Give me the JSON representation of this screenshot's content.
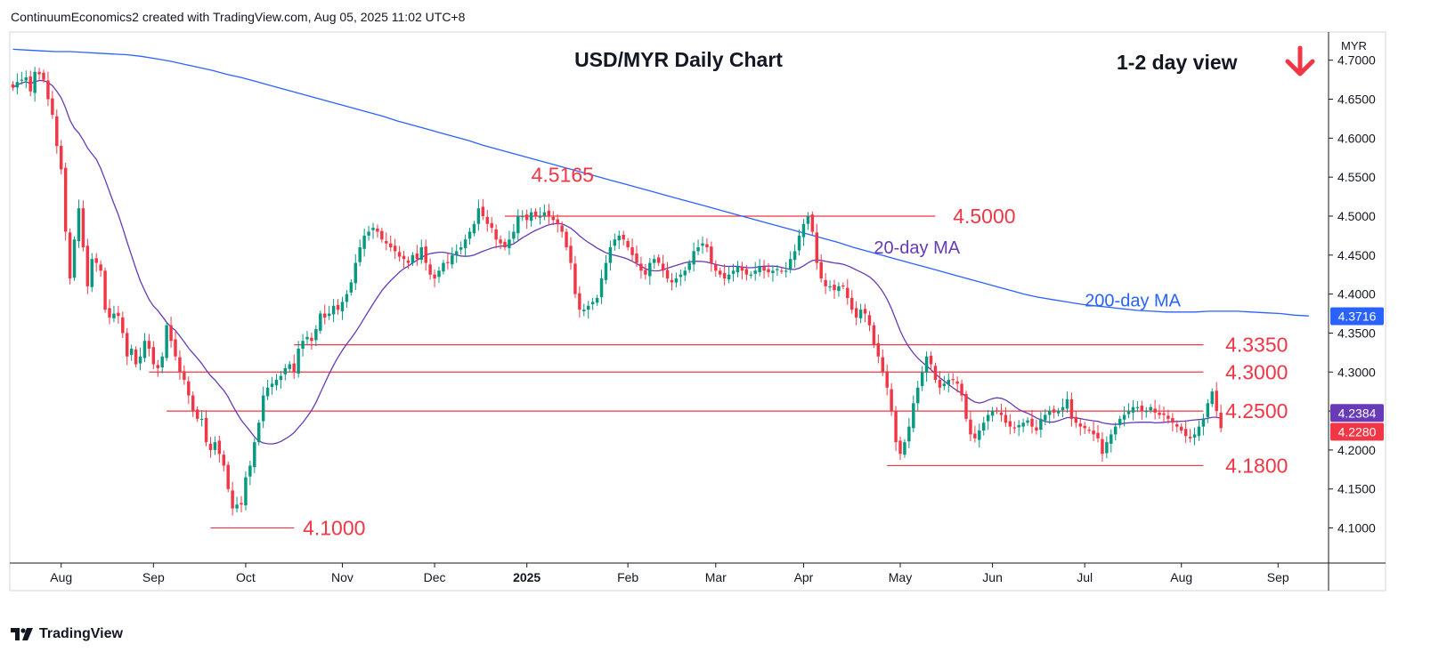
{
  "header": {
    "attribution": "ContinuumEconomics2 created with TradingView.com, Aug 05, 2025 11:02 UTC+8"
  },
  "footer": {
    "brand": "TradingView",
    "logo_icon": "tradingview-logo-icon"
  },
  "colors": {
    "up": "#089981",
    "down": "#f23645",
    "ma200": "#2962ff",
    "ma20": "#673ab7",
    "level": "#f23645",
    "axis": "#131722"
  },
  "chart_data": {
    "type": "line",
    "title": "USD/MYR Daily Chart",
    "view_label": "1-2 day view",
    "view_icon": "down-arrow-icon",
    "currency_label": "MYR",
    "y_axis": {
      "range": [
        4.055,
        4.735
      ],
      "ticks": [
        "4.1000",
        "4.1500",
        "4.2000",
        "4.2500",
        "4.3000",
        "4.3500",
        "4.4000",
        "4.4500",
        "4.5000",
        "4.5500",
        "4.6000",
        "4.6500",
        "4.7000"
      ]
    },
    "x_axis": {
      "ticks": [
        {
          "label": "Aug",
          "bar": 11,
          "bold": false
        },
        {
          "label": "Sep",
          "bar": 32,
          "bold": false
        },
        {
          "label": "Oct",
          "bar": 53,
          "bold": false
        },
        {
          "label": "Nov",
          "bar": 75,
          "bold": false
        },
        {
          "label": "Dec",
          "bar": 96,
          "bold": false
        },
        {
          "label": "2025",
          "bar": 117,
          "bold": true
        },
        {
          "label": "Feb",
          "bar": 140,
          "bold": false
        },
        {
          "label": "Mar",
          "bar": 160,
          "bold": false
        },
        {
          "label": "Apr",
          "bar": 180,
          "bold": false
        },
        {
          "label": "May",
          "bar": 202,
          "bold": false
        },
        {
          "label": "Jun",
          "bar": 223,
          "bold": false
        },
        {
          "label": "Jul",
          "bar": 244,
          "bold": false
        },
        {
          "label": "Aug",
          "bar": 266,
          "bold": false
        },
        {
          "label": "Sep",
          "bar": 288,
          "bold": false
        }
      ],
      "total_bars": 300
    },
    "last_price": "4.2280",
    "ma200_value": "4.3716",
    "ma20_value": "4.2384",
    "levels": [
      {
        "label": "4.5165",
        "price": 4.5165,
        "line_from": 0,
        "line_to": 0,
        "label_bar": 118,
        "label_above": true
      },
      {
        "label": "4.5000",
        "price": 4.5,
        "line_from": 112,
        "line_to": 210,
        "label_bar": 214
      },
      {
        "label": "4.3350",
        "price": 4.335,
        "line_from": 64,
        "line_to": 271,
        "label_bar": 276
      },
      {
        "label": "4.3000",
        "price": 4.3,
        "line_from": 31,
        "line_to": 271,
        "label_bar": 276
      },
      {
        "label": "4.2500",
        "price": 4.25,
        "line_from": 35,
        "line_to": 271,
        "label_bar": 276
      },
      {
        "label": "4.1800",
        "price": 4.18,
        "line_from": 199,
        "line_to": 271,
        "label_bar": 276
      },
      {
        "label": "4.1000",
        "price": 4.1,
        "line_from": 45,
        "line_to": 64,
        "label_bar": 66
      }
    ],
    "annotations": [
      {
        "text": "20-day MA",
        "bar": 196,
        "price": 4.452
      },
      {
        "text": "200-day MA",
        "bar": 244,
        "price": 4.384
      }
    ],
    "closes": [
      4.665,
      4.672,
      4.675,
      4.678,
      4.66,
      4.685,
      4.682,
      4.675,
      4.65,
      4.63,
      4.59,
      4.56,
      4.48,
      4.42,
      4.47,
      4.51,
      4.46,
      4.41,
      4.445,
      4.44,
      4.43,
      4.38,
      4.37,
      4.375,
      4.372,
      4.35,
      4.32,
      4.33,
      4.31,
      4.32,
      4.34,
      4.33,
      4.31,
      4.305,
      4.32,
      4.36,
      4.34,
      4.32,
      4.3,
      4.29,
      4.27,
      4.25,
      4.24,
      4.24,
      4.21,
      4.2,
      4.21,
      4.195,
      4.18,
      4.15,
      4.125,
      4.13,
      4.13,
      4.165,
      4.18,
      4.21,
      4.235,
      4.27,
      4.28,
      4.285,
      4.29,
      4.295,
      4.305,
      4.31,
      4.3,
      4.33,
      4.34,
      4.345,
      4.34,
      4.355,
      4.375,
      4.37,
      4.375,
      4.385,
      4.38,
      4.39,
      4.4,
      4.415,
      4.44,
      4.46,
      4.475,
      4.48,
      4.485,
      4.48,
      4.47,
      4.465,
      4.46,
      4.455,
      4.448,
      4.445,
      4.44,
      4.45,
      4.445,
      4.46,
      4.44,
      4.425,
      4.42,
      4.43,
      4.44,
      4.44,
      4.45,
      4.455,
      4.46,
      4.47,
      4.48,
      4.49,
      4.51,
      4.5,
      4.49,
      4.485,
      4.47,
      4.465,
      4.46,
      4.47,
      4.48,
      4.5,
      4.5,
      4.495,
      4.505,
      4.5,
      4.5,
      4.505,
      4.5,
      4.495,
      4.49,
      4.48,
      4.46,
      4.44,
      4.4,
      4.38,
      4.38,
      4.385,
      4.39,
      4.395,
      4.42,
      4.44,
      4.46,
      4.47,
      4.475,
      4.47,
      4.46,
      4.45,
      4.44,
      4.43,
      4.425,
      4.44,
      4.445,
      4.44,
      4.43,
      4.42,
      4.415,
      4.42,
      4.425,
      4.43,
      4.44,
      4.455,
      4.46,
      4.465,
      4.46,
      4.44,
      4.43,
      4.425,
      4.42,
      4.425,
      4.43,
      4.435,
      4.43,
      4.425,
      4.425,
      4.43,
      4.435,
      4.43,
      4.428,
      4.43,
      4.432,
      4.43,
      4.43,
      4.445,
      4.455,
      4.475,
      4.49,
      4.5,
      4.48,
      4.44,
      4.42,
      4.41,
      4.41,
      4.405,
      4.41,
      4.41,
      4.395,
      4.38,
      4.37,
      4.38,
      4.375,
      4.36,
      4.335,
      4.32,
      4.3,
      4.28,
      4.25,
      4.21,
      4.195,
      4.21,
      4.23,
      4.26,
      4.28,
      4.3,
      4.32,
      4.31,
      4.29,
      4.28,
      4.285,
      4.29,
      4.29,
      4.285,
      4.27,
      4.24,
      4.22,
      4.215,
      4.225,
      4.235,
      4.245,
      4.25,
      4.25,
      4.245,
      4.235,
      4.23,
      4.228,
      4.232,
      4.235,
      4.238,
      4.23,
      4.225,
      4.24,
      4.245,
      4.25,
      4.248,
      4.25,
      4.255,
      4.265,
      4.24,
      4.235,
      4.23,
      4.228,
      4.225,
      4.22,
      4.215,
      4.195,
      4.21,
      4.22,
      4.23,
      4.24,
      4.245,
      4.25,
      4.255,
      4.255,
      4.25,
      4.25,
      4.255,
      4.248,
      4.245,
      4.245,
      4.24,
      4.235,
      4.23,
      4.225,
      4.218,
      4.215,
      4.22,
      4.23,
      4.24,
      4.26,
      4.275,
      4.25,
      4.228
    ],
    "ma20": [
      4.675,
      4.672,
      4.668,
      4.662,
      4.652,
      4.638,
      4.618,
      4.598,
      4.575,
      4.552,
      4.53,
      4.508,
      4.487,
      4.465,
      4.445,
      4.426,
      4.407,
      4.39,
      4.375,
      4.36,
      4.346,
      4.333,
      4.321,
      4.31,
      4.3,
      4.292,
      4.285,
      4.278,
      4.271,
      4.264,
      4.256,
      4.247,
      4.237,
      4.227,
      4.218,
      4.214,
      4.212,
      4.215,
      4.222,
      4.232,
      4.244,
      4.256,
      4.268,
      4.28,
      4.291,
      4.301,
      4.311,
      4.32,
      4.329,
      4.338,
      4.346,
      4.354,
      4.362,
      4.37,
      4.378,
      4.386,
      4.394,
      4.402,
      4.41,
      4.418,
      4.425,
      4.431,
      4.436,
      4.44,
      4.443,
      4.445,
      4.446,
      4.447,
      4.447,
      4.447,
      4.446,
      4.445,
      4.444,
      4.444,
      4.445,
      4.447,
      4.45,
      4.454,
      4.458,
      4.462,
      4.466,
      4.47,
      4.473,
      4.475,
      4.477,
      4.479,
      4.481,
      4.482,
      4.483,
      4.484,
      4.485,
      4.486,
      4.487,
      4.488,
      4.488,
      4.486,
      4.482,
      4.476,
      4.469,
      4.462,
      4.455,
      4.449,
      4.444,
      4.44,
      4.438,
      4.437,
      4.436,
      4.436,
      4.436,
      4.437,
      4.438,
      4.439,
      4.44,
      4.441,
      4.441,
      4.44,
      4.439,
      4.437,
      4.435,
      4.433,
      4.431,
      4.43,
      4.429,
      4.428,
      4.427,
      4.427,
      4.427,
      4.427,
      4.428,
      4.429,
      4.43,
      4.431,
      4.432,
      4.433,
      4.434,
      4.436,
      4.438,
      4.44,
      4.441,
      4.441,
      4.439,
      4.436,
      4.432,
      4.427,
      4.422,
      4.416,
      4.409,
      4.402,
      4.393,
      4.383,
      4.372,
      4.361,
      4.349,
      4.337,
      4.325,
      4.314,
      4.303,
      4.294,
      4.286,
      4.28,
      4.276,
      4.273,
      4.27,
      4.267,
      4.263,
      4.259,
      4.255,
      4.251,
      4.248,
      4.245,
      4.243,
      4.242,
      4.241,
      4.24,
      4.24,
      4.24,
      4.24,
      4.24,
      4.24,
      4.24,
      4.24,
      4.24,
      4.24,
      4.239,
      4.238,
      4.237,
      4.236,
      4.235,
      4.234,
      4.234,
      4.234,
      4.235,
      4.236,
      4.237,
      4.237,
      4.237,
      4.237,
      4.236,
      4.235,
      4.234,
      4.234,
      4.235,
      4.236,
      4.237,
      4.238
    ],
    "ma20_start_bar": 72,
    "ma200": [
      4.714,
      4.713,
      4.712,
      4.711,
      4.711,
      4.71,
      4.709,
      4.708,
      4.707,
      4.705,
      4.702,
      4.699,
      4.695,
      4.691,
      4.687,
      4.682,
      4.678,
      4.673,
      4.668,
      4.663,
      4.658,
      4.653,
      4.648,
      4.643,
      4.638,
      4.633,
      4.628,
      4.622,
      4.617,
      4.612,
      4.607,
      4.602,
      4.597,
      4.591,
      4.586,
      4.581,
      4.576,
      4.571,
      4.566,
      4.561,
      4.556,
      4.551,
      4.546,
      4.541,
      4.536,
      4.531,
      4.526,
      4.521,
      4.516,
      4.511,
      4.506,
      4.501,
      4.496,
      4.491,
      4.486,
      4.481,
      4.476,
      4.471,
      4.466,
      4.46,
      4.455,
      4.45,
      4.445,
      4.44,
      4.435,
      4.43,
      4.425,
      4.42,
      4.415,
      4.41,
      4.405,
      4.4,
      4.396,
      4.393,
      4.39,
      4.387,
      4.385,
      4.383,
      4.381,
      4.379,
      4.378,
      4.377,
      4.377,
      4.377,
      4.378,
      4.378,
      4.378,
      4.377,
      4.376,
      4.375,
      4.373,
      4.372
    ]
  }
}
